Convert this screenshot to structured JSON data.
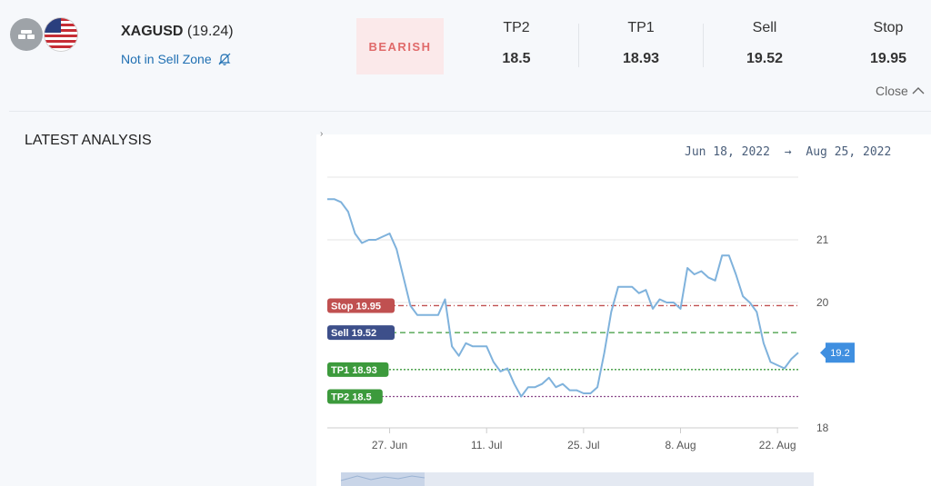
{
  "header": {
    "symbol": "XAGUSD",
    "price": "(19.24)",
    "zone_text": "Not in Sell Zone",
    "sentiment": "BEARISH",
    "levels": [
      {
        "label": "TP2",
        "value": "18.5"
      },
      {
        "label": "TP1",
        "value": "18.93"
      },
      {
        "label": "Sell",
        "value": "19.52"
      },
      {
        "label": "Stop",
        "value": "19.95"
      }
    ],
    "close_label": "Close"
  },
  "section_title": "LATEST ANALYSIS",
  "date_range": {
    "start": "Jun 18, 2022",
    "arrow": "→",
    "end": "Aug 25, 2022"
  },
  "colors": {
    "line": "#7fb2dc",
    "stop": "#c05050",
    "sell": "#3d4f8a",
    "tp": "#3c9a3c",
    "tp2_line": "#8a4a8a",
    "badge_text": "#e06a6a",
    "badge_bg": "#fbe9ea",
    "link": "#1f6fb2"
  },
  "chart_data": {
    "type": "line",
    "x_tick_labels": [
      "27. Jun",
      "11. Jul",
      "25. Jul",
      "8. Aug",
      "22. Aug"
    ],
    "y_tick_labels": [
      "21",
      "20",
      "18"
    ],
    "y_ticks": [
      21,
      20,
      18
    ],
    "ylim": [
      18,
      22
    ],
    "x_range": [
      "2022-06-18",
      "2022-08-25"
    ],
    "current_price_label": "19.2",
    "levels": [
      {
        "label": "Stop 19.95",
        "value": 19.95,
        "kind": "stop"
      },
      {
        "label": "Sell 19.52",
        "value": 19.52,
        "kind": "sell"
      },
      {
        "label": "TP1 18.93",
        "value": 18.93,
        "kind": "tp1"
      },
      {
        "label": "TP2 18.5",
        "value": 18.5,
        "kind": "tp2"
      }
    ],
    "series": [
      {
        "x": [
          "2022-06-18",
          "2022-06-19",
          "2022-06-20",
          "2022-06-21",
          "2022-06-22",
          "2022-06-23",
          "2022-06-24",
          "2022-06-25",
          "2022-06-26",
          "2022-06-27",
          "2022-06-28",
          "2022-06-29",
          "2022-06-30",
          "2022-07-01",
          "2022-07-02",
          "2022-07-03",
          "2022-07-04",
          "2022-07-05",
          "2022-07-06",
          "2022-07-07",
          "2022-07-08",
          "2022-07-09",
          "2022-07-10",
          "2022-07-11",
          "2022-07-12",
          "2022-07-13",
          "2022-07-14",
          "2022-07-15",
          "2022-07-16",
          "2022-07-17",
          "2022-07-18",
          "2022-07-19",
          "2022-07-20",
          "2022-07-21",
          "2022-07-22",
          "2022-07-23",
          "2022-07-24",
          "2022-07-25",
          "2022-07-26",
          "2022-07-27",
          "2022-07-28",
          "2022-07-29",
          "2022-07-30",
          "2022-07-31",
          "2022-08-01",
          "2022-08-02",
          "2022-08-03",
          "2022-08-04",
          "2022-08-05",
          "2022-08-06",
          "2022-08-07",
          "2022-08-08",
          "2022-08-09",
          "2022-08-10",
          "2022-08-11",
          "2022-08-12",
          "2022-08-13",
          "2022-08-14",
          "2022-08-15",
          "2022-08-16",
          "2022-08-17",
          "2022-08-18",
          "2022-08-19",
          "2022-08-20",
          "2022-08-21",
          "2022-08-22",
          "2022-08-23",
          "2022-08-24",
          "2022-08-25"
        ],
        "values": [
          21.65,
          21.65,
          21.6,
          21.45,
          21.1,
          20.95,
          21.0,
          21.0,
          21.05,
          21.1,
          20.85,
          20.4,
          19.95,
          19.8,
          19.8,
          19.8,
          19.8,
          20.05,
          19.3,
          19.15,
          19.35,
          19.3,
          19.3,
          19.3,
          19.05,
          18.9,
          18.95,
          18.7,
          18.5,
          18.65,
          18.65,
          18.7,
          18.8,
          18.65,
          18.7,
          18.6,
          18.6,
          18.55,
          18.55,
          18.65,
          19.2,
          19.85,
          20.25,
          20.25,
          20.25,
          20.15,
          20.2,
          19.9,
          20.05,
          20.0,
          20.0,
          19.9,
          20.55,
          20.45,
          20.5,
          20.4,
          20.35,
          20.75,
          20.75,
          20.45,
          20.1,
          20.0,
          19.85,
          19.35,
          19.05,
          19.0,
          18.95,
          19.1,
          19.2
        ]
      }
    ]
  }
}
